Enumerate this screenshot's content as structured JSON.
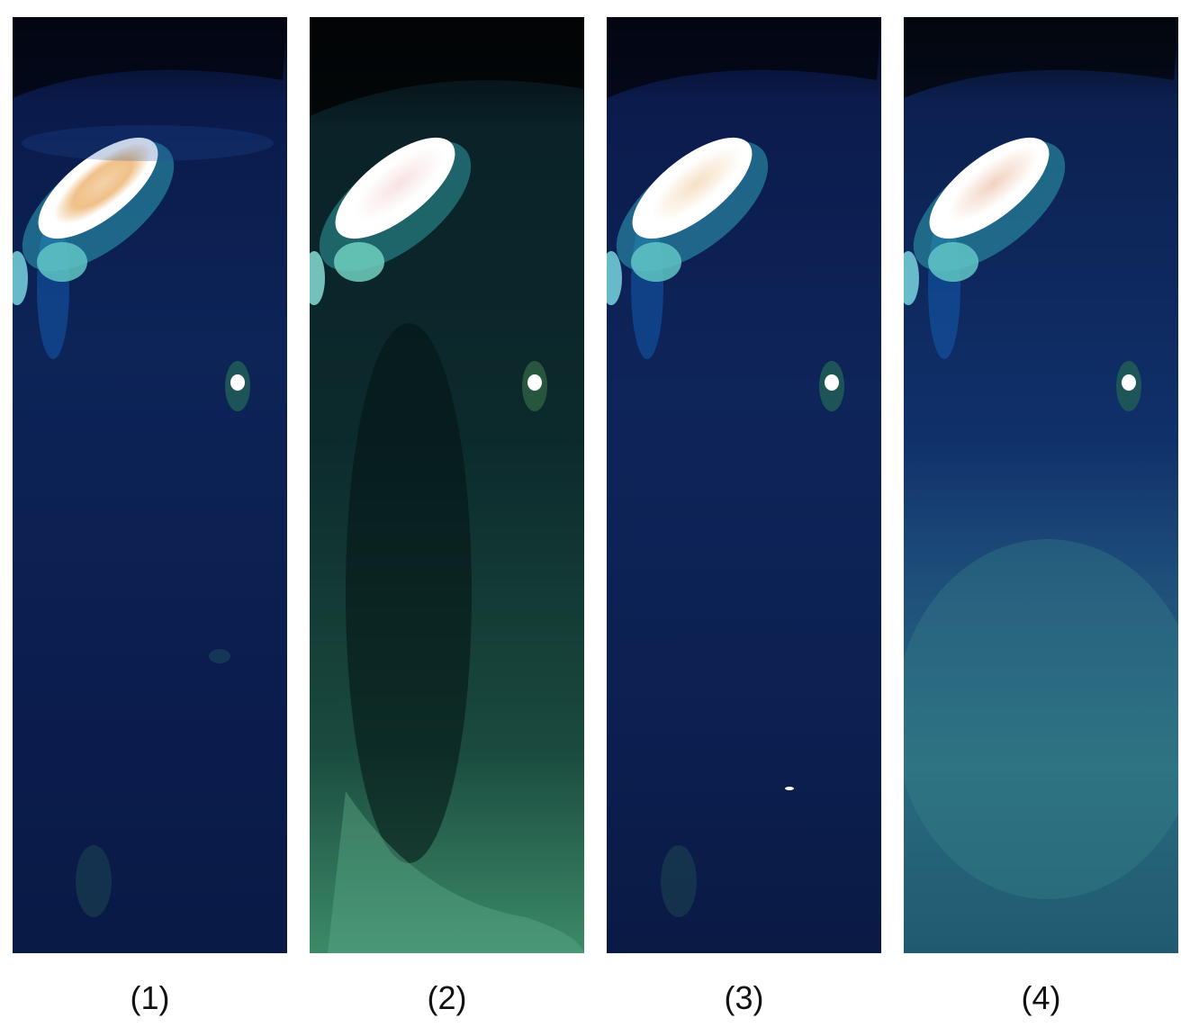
{
  "panels": [
    {
      "label": "(1)",
      "water_tone": "deep-blue"
    },
    {
      "label": "(2)",
      "water_tone": "dark-green-turbid"
    },
    {
      "label": "(3)",
      "water_tone": "deep-blue"
    },
    {
      "label": "(4)",
      "water_tone": "blue-with-haze"
    }
  ],
  "colors": {
    "background": "#ffffff",
    "caption_text": "#111111"
  }
}
